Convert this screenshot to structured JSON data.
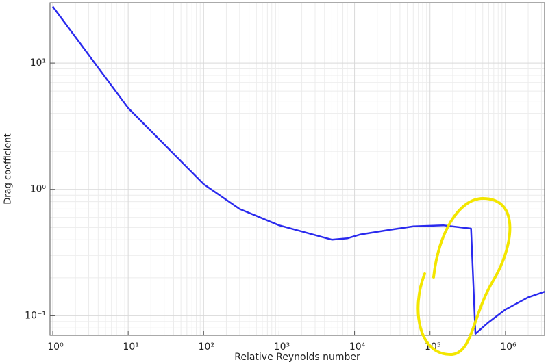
{
  "chart_data": {
    "type": "line",
    "xlabel": "Relative Reynolds number",
    "ylabel": "Drag coefficient",
    "xscale": "log",
    "yscale": "log",
    "grid": true,
    "x": [
      1,
      10,
      100,
      300,
      1000,
      5000,
      8000,
      12000,
      30000,
      60000,
      150000,
      350000,
      400000,
      600000,
      1000000,
      2000000,
      3300000
    ],
    "series": [
      {
        "name": "Drag coefficient",
        "color": "#2a2aee",
        "values": [
          28,
          4.4,
          1.1,
          0.7,
          0.52,
          0.4,
          0.41,
          0.44,
          0.48,
          0.51,
          0.52,
          0.49,
          0.072,
          0.089,
          0.112,
          0.14,
          0.155
        ]
      }
    ],
    "xlim": [
      0.92,
      3300000
    ],
    "ylim": [
      0.07,
      30
    ],
    "xticks": [
      {
        "value": 1,
        "label": "10⁰"
      },
      {
        "value": 10,
        "label": "10¹"
      },
      {
        "value": 100,
        "label": "10²"
      },
      {
        "value": 1000,
        "label": "10³"
      },
      {
        "value": 10000,
        "label": "10⁴"
      },
      {
        "value": 100000,
        "label": "10⁵"
      },
      {
        "value": 1000000,
        "label": "10⁶"
      }
    ],
    "yticks": [
      {
        "value": 0.1,
        "label": "10⁻¹"
      },
      {
        "value": 1,
        "label": "10⁰"
      },
      {
        "value": 10,
        "label": "10¹"
      }
    ]
  }
}
